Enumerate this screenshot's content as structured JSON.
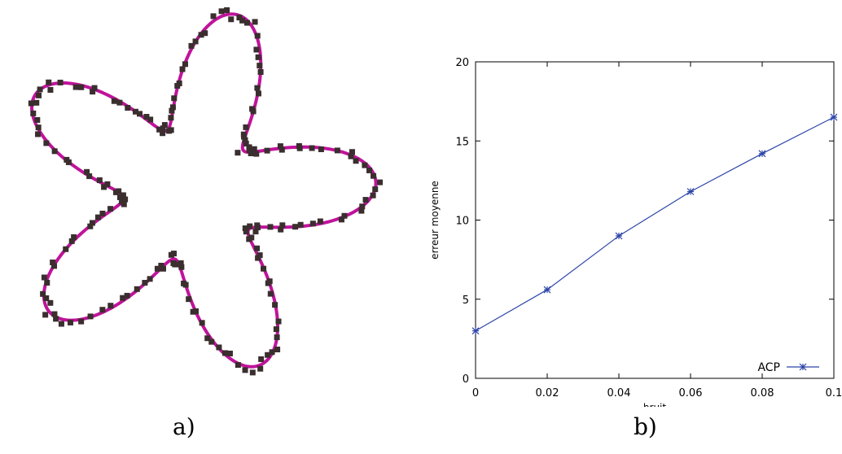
{
  "captions": {
    "a": "a)",
    "b": "b)"
  },
  "colors": {
    "curve": "#c0139b",
    "points": "#3a2e2e",
    "line": "#2c45a8",
    "axis": "#000000"
  },
  "chart_data": [
    {
      "type": "scatter",
      "title": "",
      "description_shape": "five-lobed star curve with noisy sample points",
      "curve_color": "#c0139b",
      "point_color": "#3a2e2e"
    },
    {
      "type": "line",
      "title": "",
      "xlabel": "bruit",
      "ylabel": "erreur moyenne",
      "xlim": [
        0,
        0.1
      ],
      "ylim": [
        0,
        20
      ],
      "xticks": [
        "0",
        "0.02",
        "0.04",
        "0.06",
        "0.08",
        "0.1"
      ],
      "yticks": [
        "0",
        "5",
        "10",
        "15",
        "20"
      ],
      "legend_position": "bottom-right",
      "grid": false,
      "series": [
        {
          "name": "ACP",
          "x": [
            0,
            0.02,
            0.04,
            0.06,
            0.08,
            0.1
          ],
          "y": [
            3.0,
            5.6,
            9.0,
            11.8,
            14.2,
            16.5
          ]
        }
      ]
    }
  ]
}
